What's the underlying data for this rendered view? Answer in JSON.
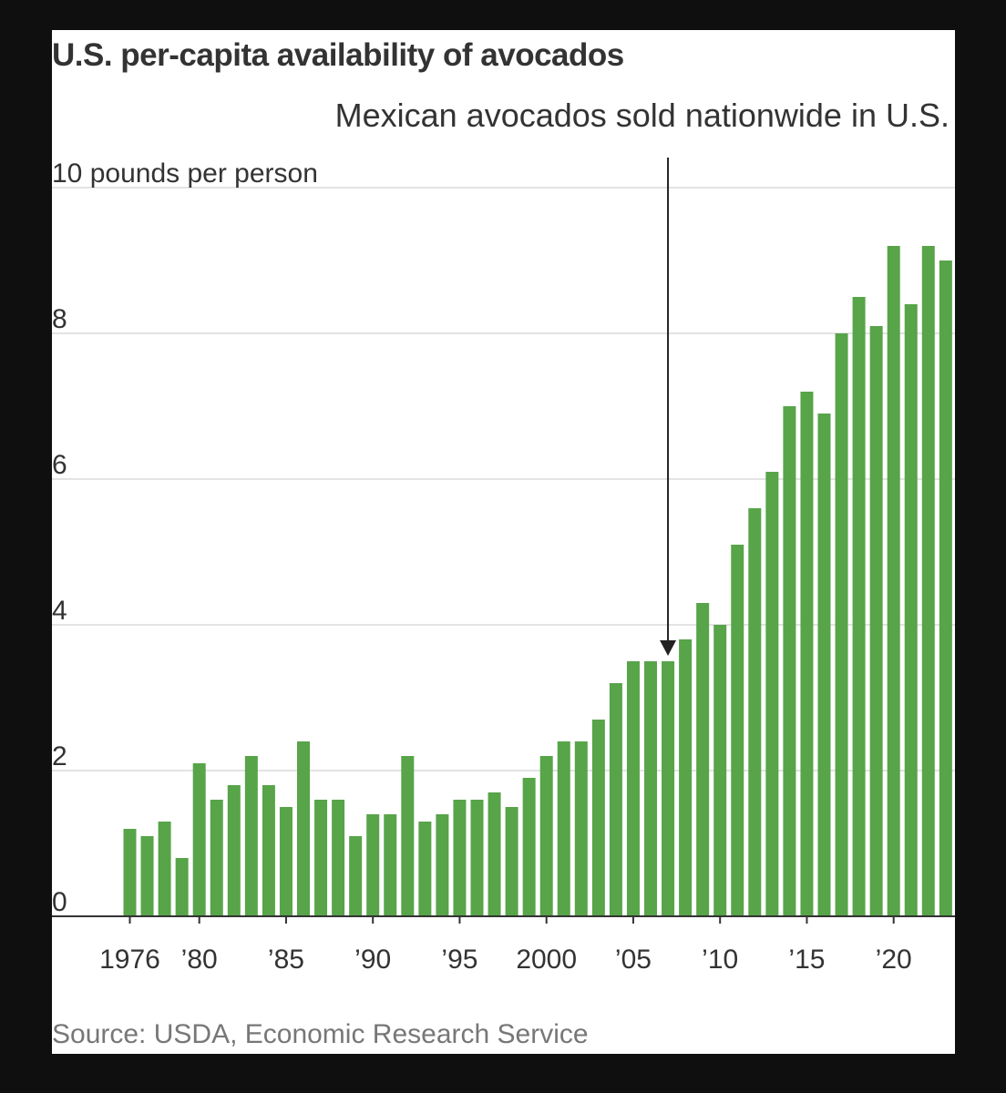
{
  "title": "U.S. per-capita availability of avocados",
  "source": "Source: USDA, Economic Research Service",
  "chart_data": {
    "type": "bar",
    "title": "U.S. per-capita availability of avocados",
    "ylabel": "pounds per person",
    "y_tick_labels": [
      "0",
      "2",
      "4",
      "6",
      "8",
      "10 pounds per person"
    ],
    "yticks": [
      0,
      2,
      4,
      6,
      8,
      10
    ],
    "ylim": [
      0,
      10
    ],
    "x_tick_labels": [
      {
        "year": 1976,
        "label": "1976"
      },
      {
        "year": 1980,
        "label": "’80"
      },
      {
        "year": 1985,
        "label": "’85"
      },
      {
        "year": 1990,
        "label": "’90"
      },
      {
        "year": 1995,
        "label": "’95"
      },
      {
        "year": 2000,
        "label": "2000"
      },
      {
        "year": 2005,
        "label": "’05"
      },
      {
        "year": 2010,
        "label": "’10"
      },
      {
        "year": 2015,
        "label": "’15"
      },
      {
        "year": 2020,
        "label": "’20"
      }
    ],
    "categories": [
      1976,
      1977,
      1978,
      1979,
      1980,
      1981,
      1982,
      1983,
      1984,
      1985,
      1986,
      1987,
      1988,
      1989,
      1990,
      1991,
      1992,
      1993,
      1994,
      1995,
      1996,
      1997,
      1998,
      1999,
      2000,
      2001,
      2002,
      2003,
      2004,
      2005,
      2006,
      2007,
      2008,
      2009,
      2010,
      2011,
      2012,
      2013,
      2014,
      2015,
      2016,
      2017,
      2018,
      2019,
      2020,
      2021,
      2022,
      2023
    ],
    "values": [
      1.2,
      1.1,
      1.3,
      0.8,
      2.1,
      1.6,
      1.8,
      2.2,
      1.8,
      1.5,
      2.4,
      1.6,
      1.6,
      1.1,
      1.4,
      1.4,
      2.2,
      1.3,
      1.4,
      1.6,
      1.6,
      1.7,
      1.5,
      1.9,
      2.2,
      2.4,
      2.4,
      2.7,
      3.2,
      3.5,
      3.5,
      3.5,
      3.8,
      4.3,
      4.0,
      5.1,
      5.6,
      6.1,
      7.0,
      7.2,
      6.9,
      8.0,
      8.5,
      8.1,
      9.2,
      8.4,
      9.2,
      9.0
    ],
    "bar_color": "#57a449",
    "grid": true,
    "annotation": {
      "text": "Mexican avocados sold nationwide in U.S.",
      "year": 2007,
      "value": 3.5
    }
  }
}
